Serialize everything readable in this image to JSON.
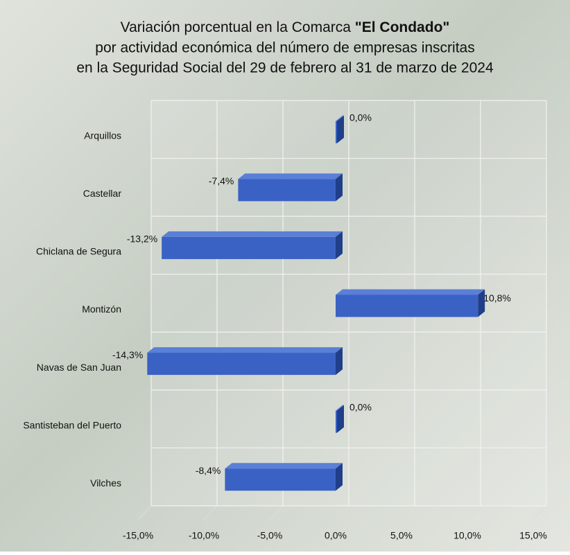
{
  "chart_data": {
    "type": "bar3d-horizontal",
    "title": [
      [
        "Variación porcentual en la Comarca",
        "\"El Condado\""
      ],
      "por actividad económica del número de empresas inscritas",
      "en la Seguridad Social del 29 de febrero al 31 de marzo de 2024"
    ],
    "categories": [
      "Arquillos",
      "Castellar",
      "Chiclana de Segura",
      "Montizón",
      "Navas de San Juan",
      "Santisteban del Puerto",
      "Vilches"
    ],
    "values": [
      0.0,
      -7.4,
      -13.2,
      10.8,
      -14.3,
      0.0,
      -8.4
    ],
    "value_labels": [
      "0,0%",
      "-7,4%",
      "-13,2%",
      "10,8%",
      "-14,3%",
      "0,0%",
      "-8,4%"
    ],
    "color": "#3a62c4",
    "xlim": [
      -15,
      15
    ],
    "xticks": [
      {
        "value": -15,
        "label": "-15,0%"
      },
      {
        "value": -10,
        "label": "-10,0%"
      },
      {
        "value": -5,
        "label": "-5,0%"
      },
      {
        "value": 0,
        "label": "0,0%"
      },
      {
        "value": 5,
        "label": "5,0%"
      },
      {
        "value": 10,
        "label": "10,0%"
      },
      {
        "value": 15,
        "label": "15,0%"
      }
    ],
    "grid": true
  }
}
